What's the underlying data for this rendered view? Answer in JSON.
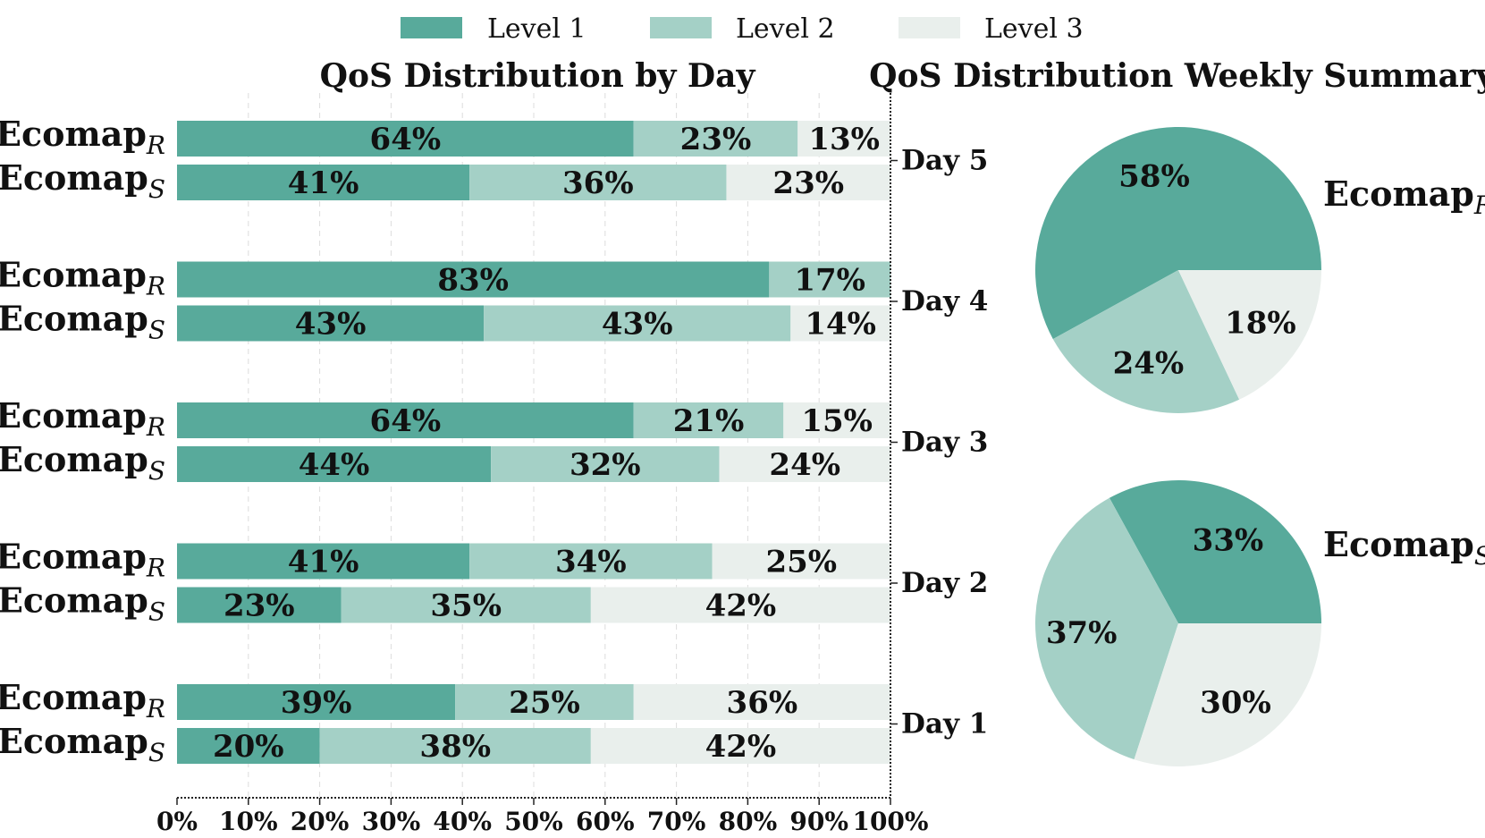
{
  "legend": {
    "items": [
      {
        "label": "Level 1",
        "color": "#58aa9b"
      },
      {
        "label": "Level 2",
        "color": "#a4d0c6"
      },
      {
        "label": "Level 3",
        "color": "#e9efec"
      }
    ]
  },
  "chart_data": [
    {
      "type": "bar",
      "orientation": "horizontal",
      "stacked": true,
      "title": "QoS Distribution by Day",
      "xlabel": "",
      "ylabel": "",
      "xlim": [
        0,
        100
      ],
      "x_ticks": [
        "0%",
        "10%",
        "20%",
        "30%",
        "40%",
        "50%",
        "60%",
        "70%",
        "80%",
        "90%",
        "100%"
      ],
      "grid": "vertical dashed",
      "series": [
        "Level 1",
        "Level 2",
        "Level 3"
      ],
      "groups": [
        {
          "day": "Day 5",
          "bars": [
            {
              "name": "Ecomap",
              "sub": "R",
              "values": [
                64,
                23,
                13
              ]
            },
            {
              "name": "Ecomap",
              "sub": "S",
              "values": [
                41,
                36,
                23
              ]
            }
          ]
        },
        {
          "day": "Day 4",
          "bars": [
            {
              "name": "Ecomap",
              "sub": "R",
              "values": [
                83,
                17,
                0
              ]
            },
            {
              "name": "Ecomap",
              "sub": "S",
              "values": [
                43,
                43,
                14
              ]
            }
          ]
        },
        {
          "day": "Day 3",
          "bars": [
            {
              "name": "Ecomap",
              "sub": "R",
              "values": [
                64,
                21,
                15
              ]
            },
            {
              "name": "Ecomap",
              "sub": "S",
              "values": [
                44,
                32,
                24
              ]
            }
          ]
        },
        {
          "day": "Day 2",
          "bars": [
            {
              "name": "Ecomap",
              "sub": "R",
              "values": [
                41,
                34,
                25
              ]
            },
            {
              "name": "Ecomap",
              "sub": "S",
              "values": [
                23,
                35,
                42
              ]
            }
          ]
        },
        {
          "day": "Day 1",
          "bars": [
            {
              "name": "Ecomap",
              "sub": "R",
              "values": [
                39,
                25,
                36
              ]
            },
            {
              "name": "Ecomap",
              "sub": "S",
              "values": [
                20,
                38,
                42
              ]
            }
          ]
        }
      ]
    },
    {
      "type": "pie",
      "title": "QoS Distribution Weekly Summary",
      "pies": [
        {
          "name": "Ecomap",
          "sub": "R",
          "labels": [
            "Level 1",
            "Level 2",
            "Level 3"
          ],
          "values": [
            58,
            24,
            18
          ]
        },
        {
          "name": "Ecomap",
          "sub": "S",
          "labels": [
            "Level 1",
            "Level 2",
            "Level 3"
          ],
          "values": [
            33,
            37,
            30
          ]
        }
      ]
    }
  ]
}
